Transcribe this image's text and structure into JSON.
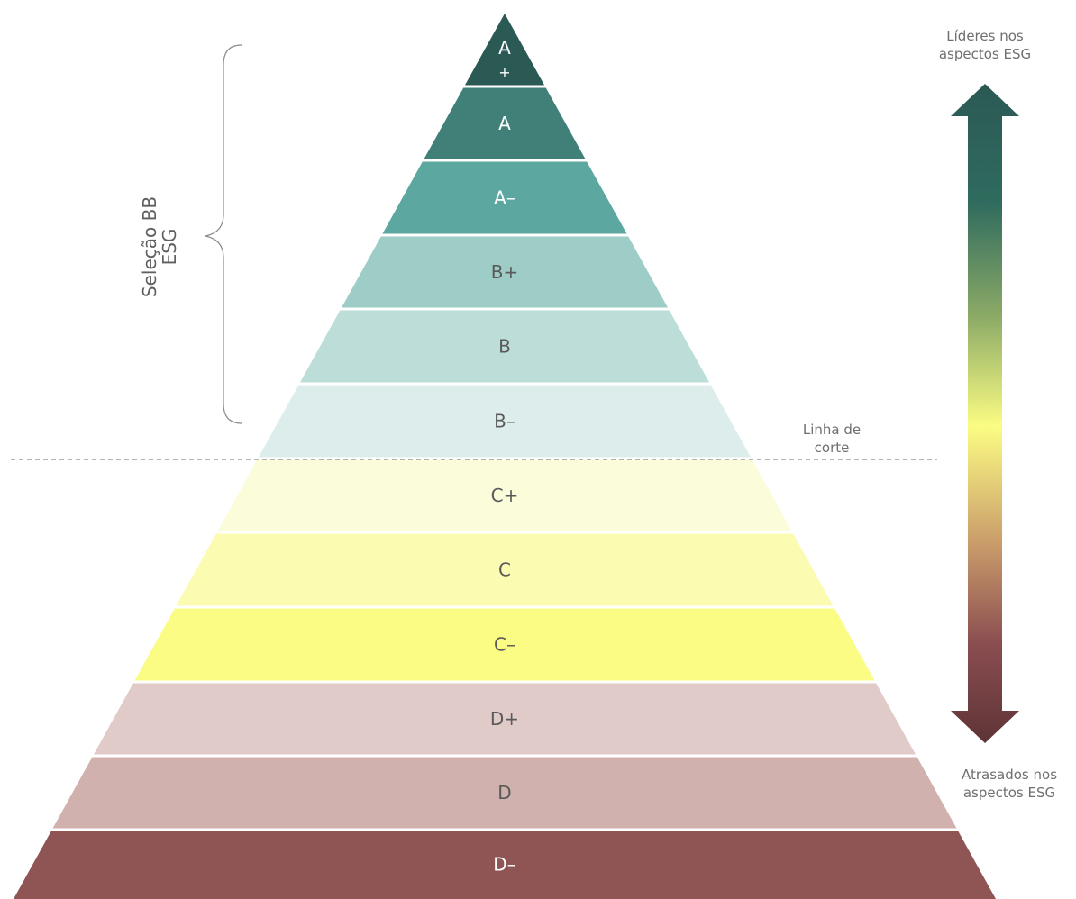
{
  "diagram": {
    "levels": [
      {
        "label": "A",
        "label2": "+",
        "fill": "#2b5954",
        "text_color": "#ffffff"
      },
      {
        "label": "A",
        "fill": "#417f79",
        "text_color": "#ffffff"
      },
      {
        "label": "A–",
        "fill": "#5ca79f",
        "text_color": "#ffffff"
      },
      {
        "label": "B+",
        "fill": "#9dcdc6",
        "text_color": "#5a5a5a"
      },
      {
        "label": "B",
        "fill": "#bdded8",
        "text_color": "#5a5a5a"
      },
      {
        "label": "B–",
        "fill": "#dcedec",
        "text_color": "#5a5a5a"
      },
      {
        "label": "C+",
        "fill": "#fbfcd9",
        "text_color": "#5a5a5a"
      },
      {
        "label": "C",
        "fill": "#fbfcb2",
        "text_color": "#5a5a5a"
      },
      {
        "label": "C–",
        "fill": "#fbfc83",
        "text_color": "#5a5a5a"
      },
      {
        "label": "D+",
        "fill": "#e1cbc9",
        "text_color": "#5a5a5a"
      },
      {
        "label": "D",
        "fill": "#d0b1ae",
        "text_color": "#5a5a5a"
      },
      {
        "label": "D–",
        "fill": "#8f5454",
        "text_color": "#ffffff"
      }
    ],
    "bracket_label_line1": "Seleção BB",
    "bracket_label_line2": "ESG",
    "cut_line_label_line1": "Linha de",
    "cut_line_label_line2": "corte",
    "top_label_line1": "Líderes nos",
    "top_label_line2": "aspectos ESG",
    "bottom_label_line1": "Atrasados nos",
    "bottom_label_line2": "aspectos ESG",
    "colors": {
      "arrow_top": "#2b5954",
      "arrow_mid": "#fbfc83",
      "arrow_bottom": "#5e3436",
      "cut_line": "#8a8a8a",
      "bracket": "#8a8a8a"
    }
  }
}
